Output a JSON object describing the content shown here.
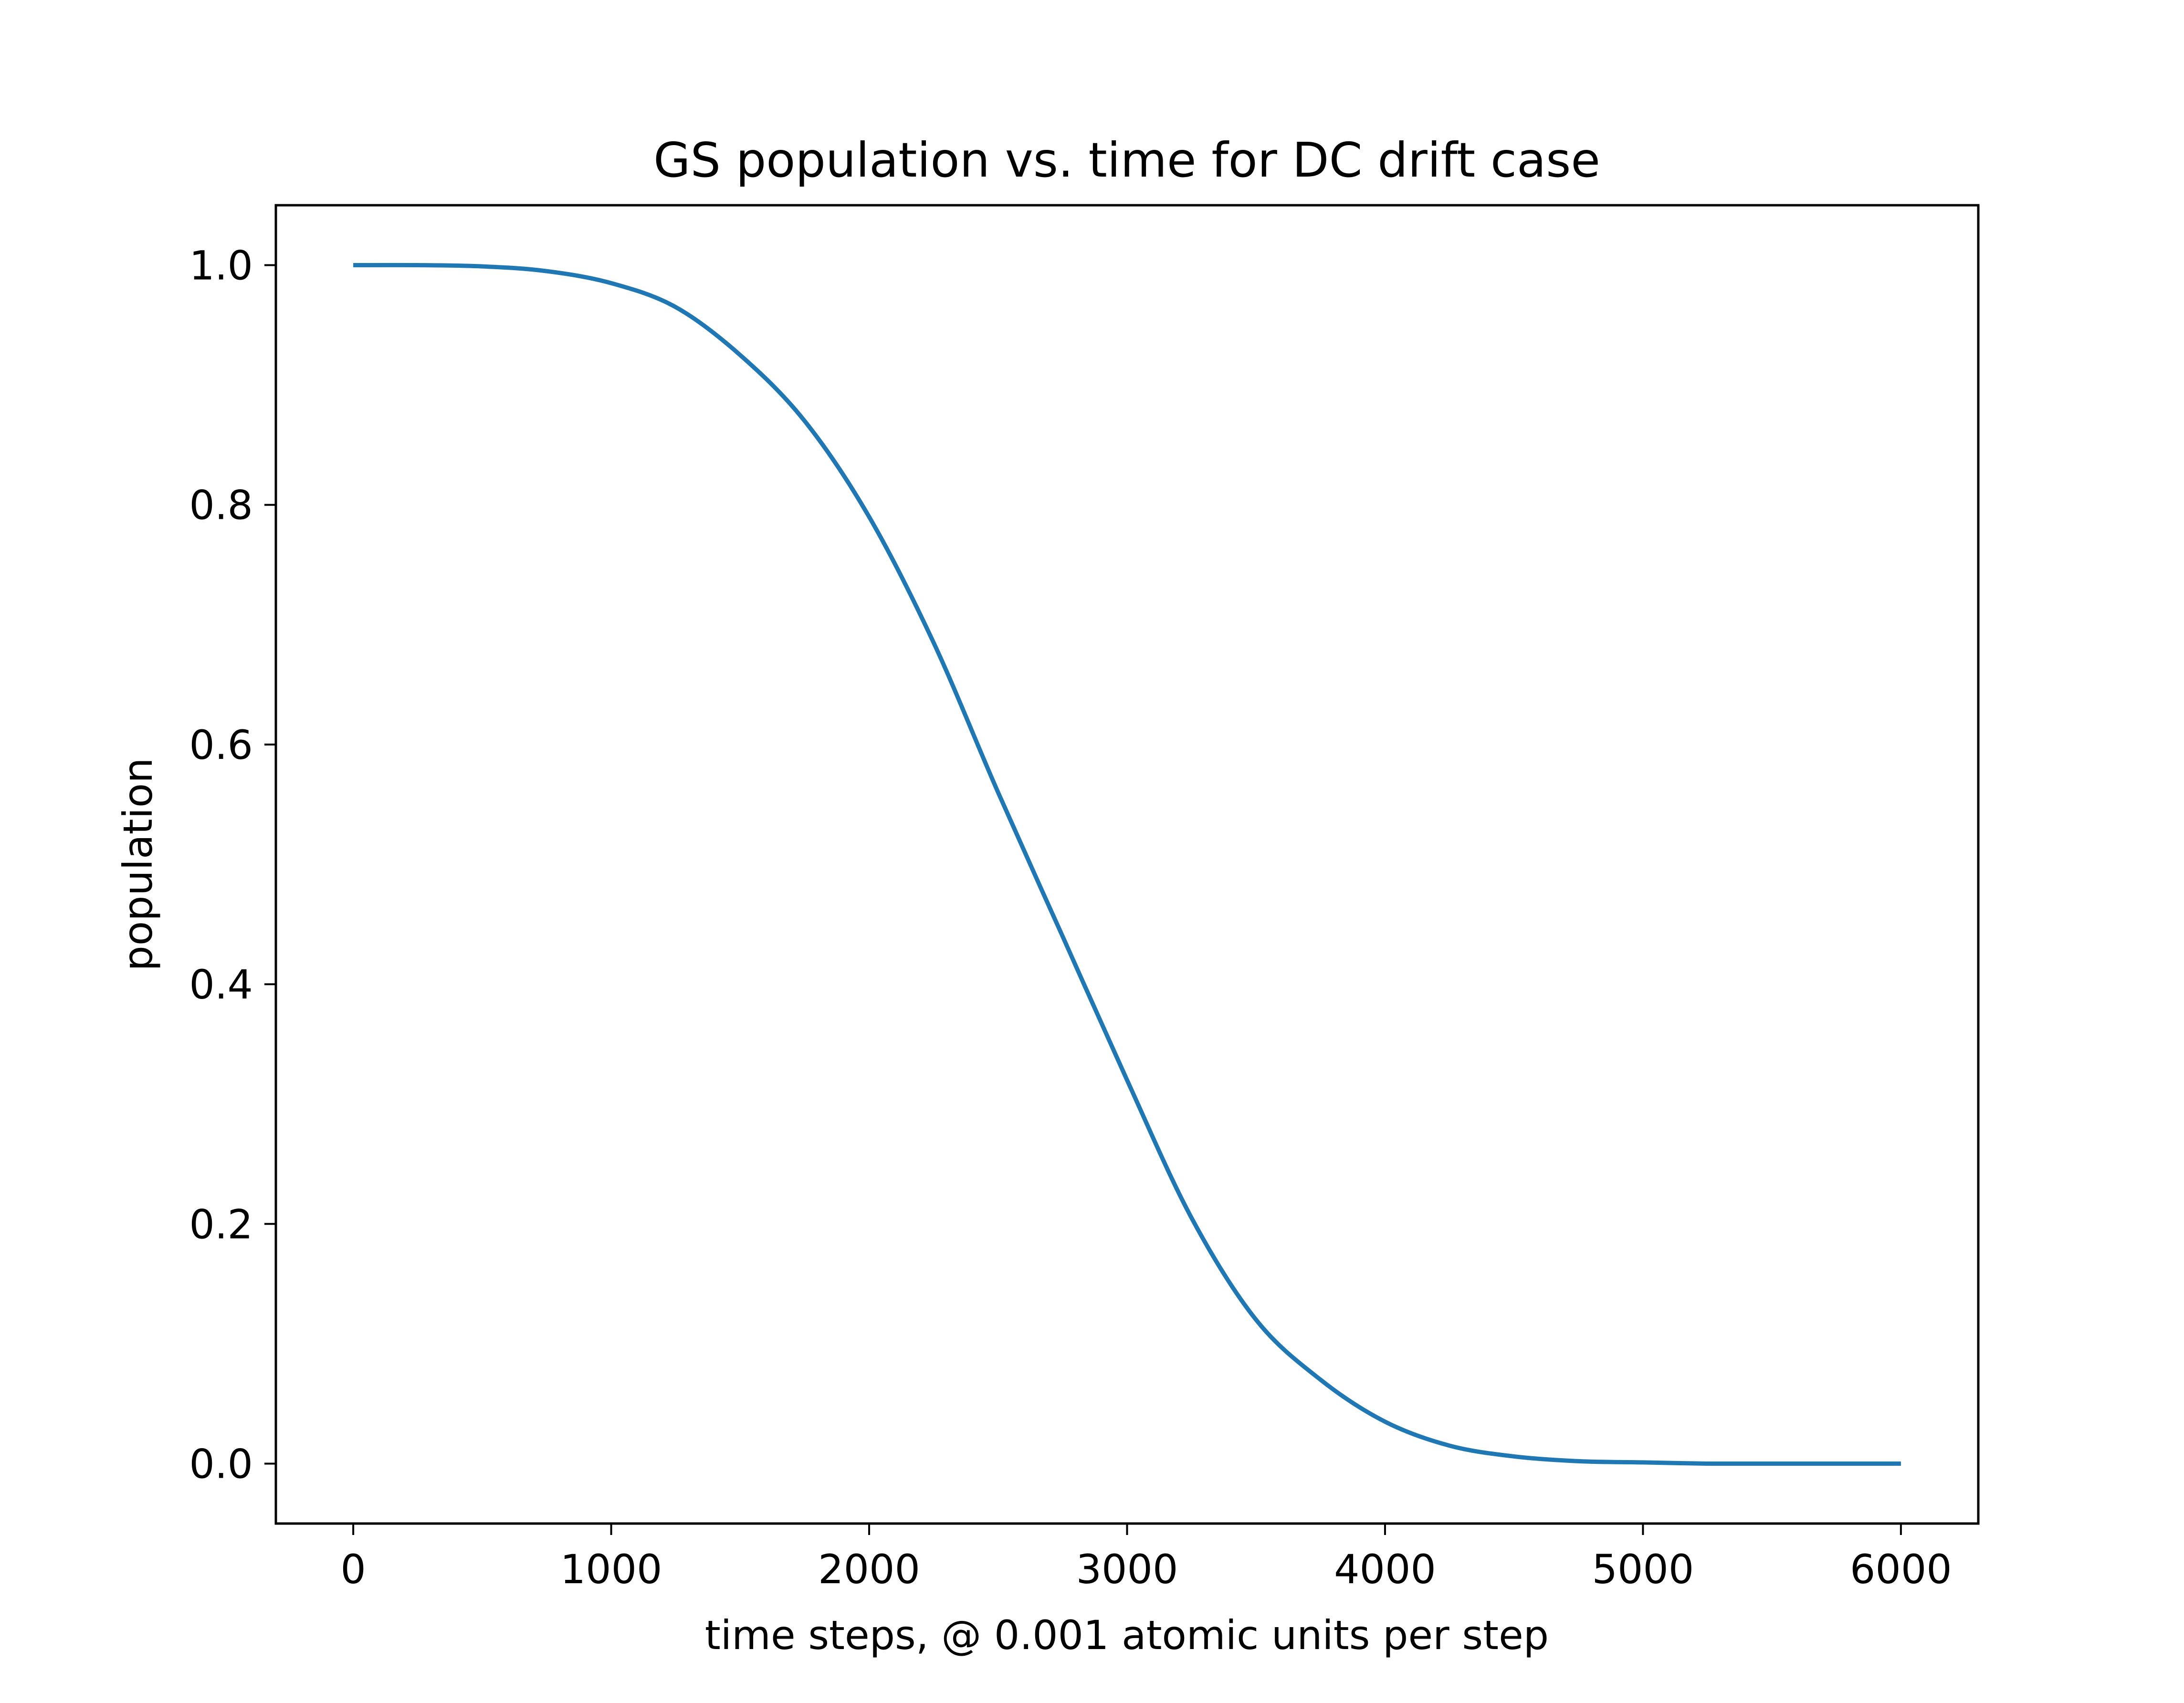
{
  "chart_data": {
    "type": "line",
    "title": "GS population vs. time for DC drift case",
    "xlabel": "time steps, @ 0.001 atomic units per step",
    "ylabel": "population",
    "xlim": [
      -300,
      6300
    ],
    "ylim": [
      -0.05,
      1.05
    ],
    "xticks": [
      0,
      1000,
      2000,
      3000,
      4000,
      5000,
      6000
    ],
    "xtick_labels": [
      "0",
      "1000",
      "2000",
      "3000",
      "4000",
      "5000",
      "6000"
    ],
    "yticks": [
      0.0,
      0.2,
      0.4,
      0.6,
      0.8,
      1.0
    ],
    "ytick_labels": [
      "0.0",
      "0.2",
      "0.4",
      "0.6",
      "0.8",
      "1.0"
    ],
    "grid": false,
    "series": [
      {
        "color": "#1f77b4",
        "x": [
          0,
          250,
          500,
          750,
          1000,
          1250,
          1500,
          1750,
          2000,
          2250,
          2500,
          2750,
          3000,
          3250,
          3500,
          3750,
          4000,
          4250,
          4500,
          4750,
          5000,
          5250,
          5500,
          5750,
          6000
        ],
        "y": [
          1.0,
          1.0,
          0.999,
          0.995,
          0.985,
          0.965,
          0.925,
          0.87,
          0.79,
          0.685,
          0.56,
          0.44,
          0.32,
          0.205,
          0.12,
          0.07,
          0.035,
          0.015,
          0.006,
          0.002,
          0.001,
          0.0,
          0.0,
          0.0,
          0.0
        ]
      }
    ]
  }
}
